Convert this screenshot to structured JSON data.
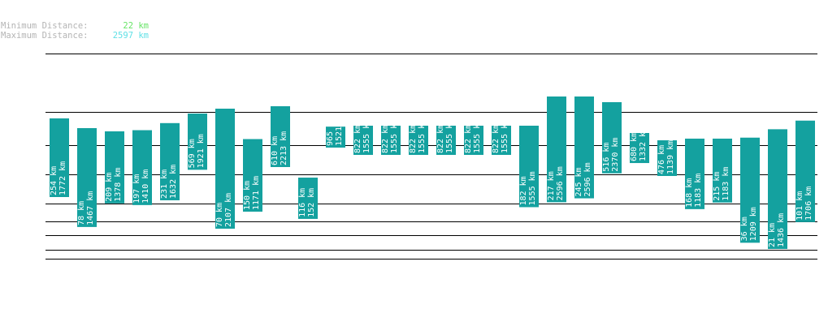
{
  "header": {
    "min_label": "Minimum Distance:",
    "min_value": "22 km",
    "min_color": "#66e466",
    "max_label": "Maximum Distance:",
    "max_value": "2597 km",
    "max_color": "#5fe0e6"
  },
  "chart_data": {
    "type": "bar",
    "title": "",
    "unit": "km",
    "bar_color": "#14a19f",
    "bars": [
      {
        "low": 254,
        "high": 1772
      },
      {
        "low": 78,
        "high": 1467
      },
      {
        "low": 209,
        "high": 1378
      },
      {
        "low": 197,
        "high": 1410
      },
      {
        "low": 231,
        "high": 1632
      },
      {
        "low": 569,
        "high": 1921
      },
      {
        "low": 70,
        "high": 2107
      },
      {
        "low": 150,
        "high": 1171
      },
      {
        "low": 610,
        "high": 2213
      },
      {
        "low": 116,
        "high": 152
      },
      {
        "low": 965,
        "high": 1521
      },
      {
        "low": 822,
        "high": 1555
      },
      {
        "low": 822,
        "high": 1555
      },
      {
        "low": 822,
        "high": 1555
      },
      {
        "low": 822,
        "high": 1555
      },
      {
        "low": 822,
        "high": 1555
      },
      {
        "low": 822,
        "high": 1555
      },
      {
        "low": 182,
        "high": 1555
      },
      {
        "low": 217,
        "high": 2596
      },
      {
        "low": 245,
        "high": 2596
      },
      {
        "low": 516,
        "high": 2370
      },
      {
        "low": 680,
        "high": 1332
      },
      {
        "low": 476,
        "high": 1139
      },
      {
        "low": 168,
        "high": 1183
      },
      {
        "low": 215,
        "high": 1183
      },
      {
        "low": 36,
        "high": 1209
      },
      {
        "low": 21,
        "high": 1436
      },
      {
        "low": 101,
        "high": 1706
      }
    ]
  }
}
